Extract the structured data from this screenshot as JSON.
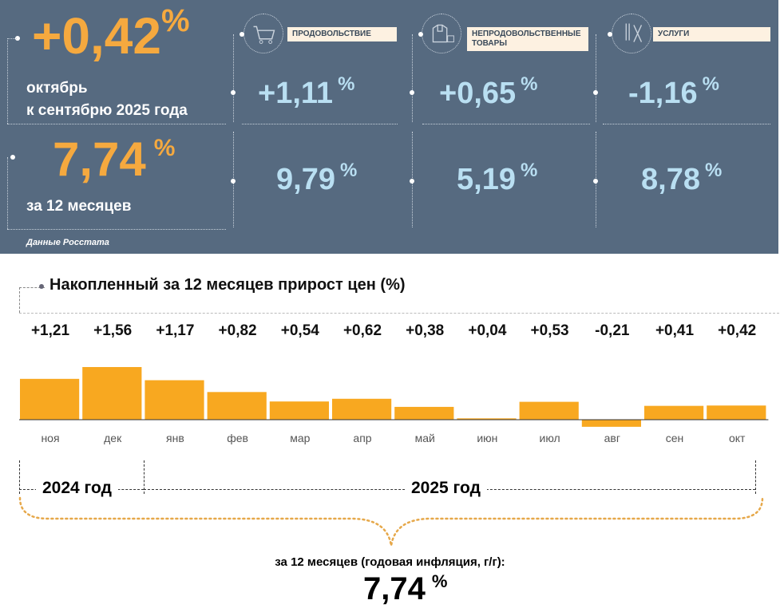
{
  "summary": {
    "month_value": "+0,42",
    "percent": "%",
    "month_caption_1": "октябрь",
    "month_caption_2": "к сентябрю 2025 года",
    "year_value": "7,74",
    "year_caption": "за 12 месяцев",
    "source": "Данные Росстата"
  },
  "categories": [
    {
      "label": "ПРОДОВОЛЬСТВИЕ",
      "icon": "shopping-cart-icon",
      "month": "+1,11",
      "year": "9,79"
    },
    {
      "label": "НЕПРОДОВОЛЬСТВЕННЫЕ ТОВАРЫ",
      "icon": "clothes-bag-icon",
      "month": "+0,65",
      "year": "5,19"
    },
    {
      "label": "УСЛУГИ",
      "icon": "scissors-comb-icon",
      "month": "-1,16",
      "year": "8,78"
    }
  ],
  "colors": {
    "panel": "#566a80",
    "accent": "#f5a93f",
    "value_blue": "#b9dff2",
    "bar": "#f8a820"
  },
  "chart_data": {
    "type": "bar",
    "title": "Накопленный за 12 месяцев прирост цен (%)",
    "categories": [
      "ноя",
      "дек",
      "янв",
      "фев",
      "мар",
      "апр",
      "май",
      "июн",
      "июл",
      "авг",
      "сен",
      "окт"
    ],
    "values": [
      1.21,
      1.56,
      1.17,
      0.82,
      0.54,
      0.62,
      0.38,
      0.04,
      0.53,
      -0.21,
      0.41,
      0.42
    ],
    "value_labels": [
      "+1,21",
      "+1,56",
      "+1,17",
      "+0,82",
      "+0,54",
      "+0,62",
      "+0,38",
      "+0,04",
      "+0,53",
      "-0,21",
      "+0,41",
      "+0,42"
    ],
    "year_groups": [
      "2024 год",
      "2025 год"
    ],
    "grid": false
  },
  "footer": {
    "caption": "за 12 месяцев (годовая инфляция, г/г):",
    "value": "7,74",
    "percent": "%"
  }
}
